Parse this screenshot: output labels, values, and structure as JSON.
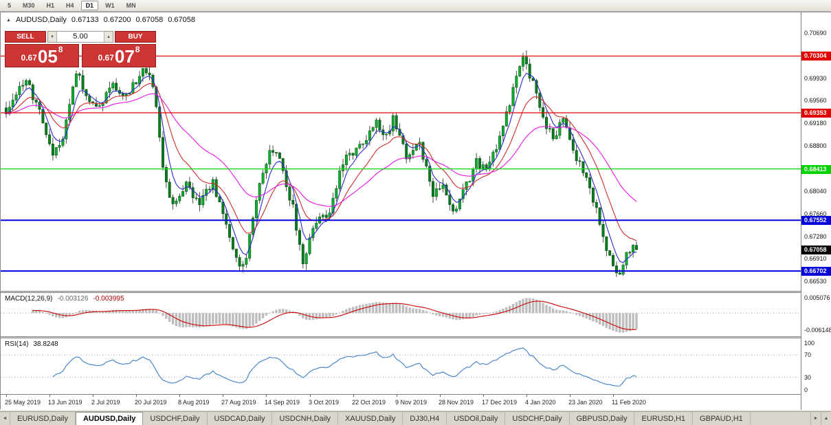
{
  "icons": {
    "expand_arrow": "▲",
    "tab_scroll_left": "◄",
    "tab_scroll_right": "►",
    "tab_list": "▲",
    "vol_down": "▼",
    "vol_up": "▲"
  },
  "toolbar": {
    "timeframes": [
      {
        "label": "5",
        "active": false
      },
      {
        "label": "M30",
        "active": false
      },
      {
        "label": "H1",
        "active": false
      },
      {
        "label": "H4",
        "active": false
      },
      {
        "label": "D1",
        "active": true
      },
      {
        "label": "W1",
        "active": false
      },
      {
        "label": "MN",
        "active": false
      }
    ]
  },
  "chart": {
    "symbol": "AUDUSD,Daily",
    "open": "0.67133",
    "high": "0.67200",
    "low": "0.67058",
    "close": "0.67058"
  },
  "trade_panel": {
    "sell_label": "SELL",
    "buy_label": "BUY",
    "volume": "5.00",
    "sell_price": {
      "prefix": "0.67",
      "big": "05",
      "sup": "8"
    },
    "buy_price": {
      "prefix": "0.67",
      "big": "07",
      "sup": "8"
    }
  },
  "price_axis": {
    "ticks": [
      "0.70690",
      "0.69930",
      "0.69560",
      "0.69180",
      "0.68800",
      "0.68040",
      "0.67660",
      "0.67280",
      "0.66910",
      "0.66530"
    ]
  },
  "hlines": [
    {
      "label": "0.70304",
      "color": "#e30000",
      "width": 1.3
    },
    {
      "label": "0.69353",
      "color": "#e30000",
      "width": 1.3
    },
    {
      "label": "0.68413",
      "color": "#00d300",
      "width": 1.3
    },
    {
      "label": "0.67552",
      "color": "#0000dd",
      "width": 2
    },
    {
      "label": "0.66702",
      "color": "#0000dd",
      "width": 2
    }
  ],
  "current_price": {
    "label": "0.67058",
    "color": "#000000"
  },
  "macd_panel": {
    "title": "MACD(12,26,9)",
    "value1": "-0.003126",
    "value2": "-0.003995",
    "axis_top": "0.005076",
    "axis_bottom": "-0.006148"
  },
  "rsi_panel": {
    "title": "RSI(14)",
    "value": "38.8248",
    "axis_labels": [
      "100",
      "70",
      "30",
      "0"
    ],
    "levels": [
      70,
      30
    ]
  },
  "time_axis": {
    "labels": [
      "25 May 2019",
      "13 Jun 2019",
      "2 Jul 2019",
      "20 Jul 2019",
      "8 Aug 2019",
      "27 Aug 2019",
      "14 Sep 2019",
      "3 Oct 2019",
      "22 Oct 2019",
      "9 Nov 2019",
      "28 Nov 2019",
      "17 Dec 2019",
      "4 Jan 2020",
      "23 Jan 2020",
      "11 Feb 2020"
    ]
  },
  "tabs": {
    "items": [
      {
        "label": "EURUSD,Daily",
        "active": false
      },
      {
        "label": "AUDUSD,Daily",
        "active": true
      },
      {
        "label": "USDCHF,Daily",
        "active": false
      },
      {
        "label": "USDCAD,Daily",
        "active": false
      },
      {
        "label": "USDCNH,Daily",
        "active": false
      },
      {
        "label": "XAUUSD,Daily",
        "active": false
      },
      {
        "label": "DJ30,H4",
        "active": false
      },
      {
        "label": "USDOil,Daily",
        "active": false
      },
      {
        "label": "USDCHF,Daily",
        "active": false
      },
      {
        "label": "GBPUSD,Daily",
        "active": false
      },
      {
        "label": "EURUSD,H1",
        "active": false
      },
      {
        "label": "GBPAUD,H1",
        "active": false
      }
    ]
  },
  "chart_data": {
    "type": "candlestick",
    "symbol": "AUDUSD",
    "timeframe": "Daily",
    "candle_count": 190,
    "price_range_visible": [
      0.6653,
      0.7069
    ],
    "horizontal_lines": [
      0.70304,
      0.69353,
      0.68413,
      0.67552,
      0.66702
    ],
    "last_candle": {
      "open": 0.67133,
      "high": 0.672,
      "low": 0.67058,
      "close": 0.67058
    },
    "price_path": [
      [
        0,
        0.693
      ],
      [
        3,
        0.6962
      ],
      [
        6,
        0.6991
      ],
      [
        9,
        0.6952
      ],
      [
        12,
        0.6896
      ],
      [
        14,
        0.686
      ],
      [
        17,
        0.6895
      ],
      [
        21,
        0.7002
      ],
      [
        24,
        0.6968
      ],
      [
        28,
        0.6942
      ],
      [
        32,
        0.6982
      ],
      [
        36,
        0.6962
      ],
      [
        41,
        0.7006
      ],
      [
        44,
        0.6985
      ],
      [
        47,
        0.685
      ],
      [
        50,
        0.6776
      ],
      [
        54,
        0.6812
      ],
      [
        58,
        0.6788
      ],
      [
        62,
        0.6822
      ],
      [
        66,
        0.6744
      ],
      [
        70,
        0.6678
      ],
      [
        72,
        0.6692
      ],
      [
        75,
        0.6788
      ],
      [
        79,
        0.6878
      ],
      [
        82,
        0.6858
      ],
      [
        86,
        0.6776
      ],
      [
        89,
        0.6684
      ],
      [
        93,
        0.6752
      ],
      [
        97,
        0.6772
      ],
      [
        101,
        0.6852
      ],
      [
        106,
        0.6882
      ],
      [
        111,
        0.6916
      ],
      [
        114,
        0.6892
      ],
      [
        116,
        0.6926
      ],
      [
        120,
        0.6862
      ],
      [
        124,
        0.6882
      ],
      [
        128,
        0.6802
      ],
      [
        131,
        0.6822
      ],
      [
        134,
        0.6772
      ],
      [
        138,
        0.6812
      ],
      [
        141,
        0.6852
      ],
      [
        144,
        0.6836
      ],
      [
        147,
        0.6882
      ],
      [
        150,
        0.6932
      ],
      [
        153,
        0.6992
      ],
      [
        155,
        0.7026
      ],
      [
        158,
        0.6986
      ],
      [
        161,
        0.6922
      ],
      [
        164,
        0.6896
      ],
      [
        167,
        0.6921
      ],
      [
        170,
        0.6872
      ],
      [
        173,
        0.6836
      ],
      [
        176,
        0.6792
      ],
      [
        179,
        0.6732
      ],
      [
        181,
        0.6692
      ],
      [
        183,
        0.6662
      ],
      [
        185,
        0.6682
      ],
      [
        187,
        0.6706
      ],
      [
        189,
        0.67058
      ]
    ],
    "moving_averages": [
      {
        "type": "ema",
        "period": 5,
        "color": "#2a2ad0"
      },
      {
        "type": "ema",
        "period": 13,
        "color": "#d02a2a"
      },
      {
        "type": "ema",
        "period": 34,
        "color": "#e616e6"
      }
    ],
    "indicators": {
      "macd": {
        "fast": 12,
        "slow": 26,
        "signal": 9,
        "main_last": -0.003126,
        "signal_last": -0.003995
      },
      "rsi": {
        "period": 14,
        "last": 38.8248
      }
    }
  }
}
